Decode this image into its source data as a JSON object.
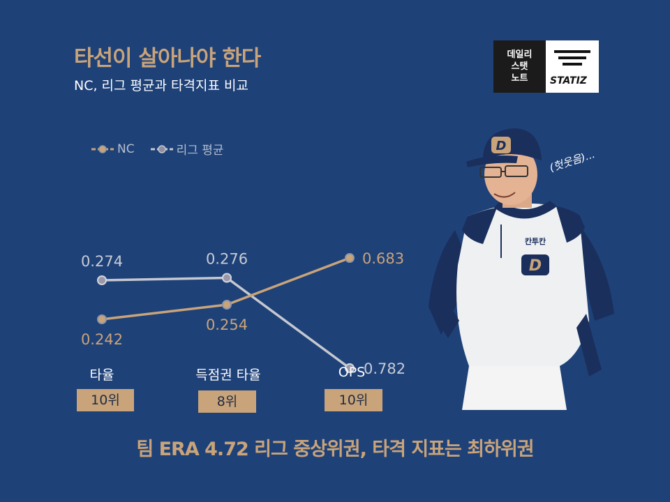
{
  "title": "타선이 살아나야 한다",
  "subtitle": "NC, 리그 평균과 타격지표 비교",
  "badge": {
    "line1": "데일리",
    "line2": "스탯",
    "line3": "노트",
    "brand": "STATIZ"
  },
  "photo_caption": "(헛웃음)...",
  "colors": {
    "background": "#1e4178",
    "accent": "#c9a47a",
    "league": "#c6c8d0",
    "nc": "#c9a47a"
  },
  "chart_data": {
    "type": "line",
    "categories": [
      "타율",
      "득점권 타율",
      "OPS"
    ],
    "series": [
      {
        "name": "NC",
        "values": [
          0.242,
          0.254,
          0.683
        ],
        "labels": [
          "0.242",
          "0.254",
          "0.683"
        ],
        "color": "#c9a47a"
      },
      {
        "name": "리그 평균",
        "values": [
          0.274,
          0.276,
          0.782
        ],
        "labels": [
          "0.274",
          "0.276",
          "0.782"
        ],
        "color": "#c6c8d0"
      }
    ],
    "ranks": [
      "10위",
      "8위",
      "10위"
    ]
  },
  "footer": "팀 ERA 4.72 리그 중상위권, 타격 지표는 최하위권"
}
